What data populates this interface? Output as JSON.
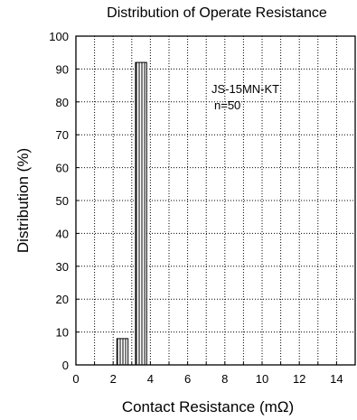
{
  "chart_data": {
    "type": "bar",
    "title": "Distribution of Operate Resistance",
    "xlabel": "Contact Resistance (mΩ)",
    "ylabel": "Distribution (%)",
    "xlim": [
      0,
      15
    ],
    "ylim": [
      0,
      100
    ],
    "xticks": [
      0,
      2,
      4,
      6,
      8,
      10,
      12,
      14
    ],
    "yticks": [
      0,
      10,
      20,
      30,
      40,
      50,
      60,
      70,
      80,
      90,
      100
    ],
    "grid": true,
    "bars": [
      {
        "x_start": 2.2,
        "x_end": 2.8,
        "value": 8
      },
      {
        "x_start": 3.2,
        "x_end": 3.8,
        "value": 92
      }
    ],
    "annotations": [
      "JS-15MN-KT",
      "n=50"
    ]
  },
  "colors": {
    "axis": "#000000",
    "grid": "#000000",
    "bar_fill": "#ffffff",
    "bar_hatch": "#000000"
  }
}
